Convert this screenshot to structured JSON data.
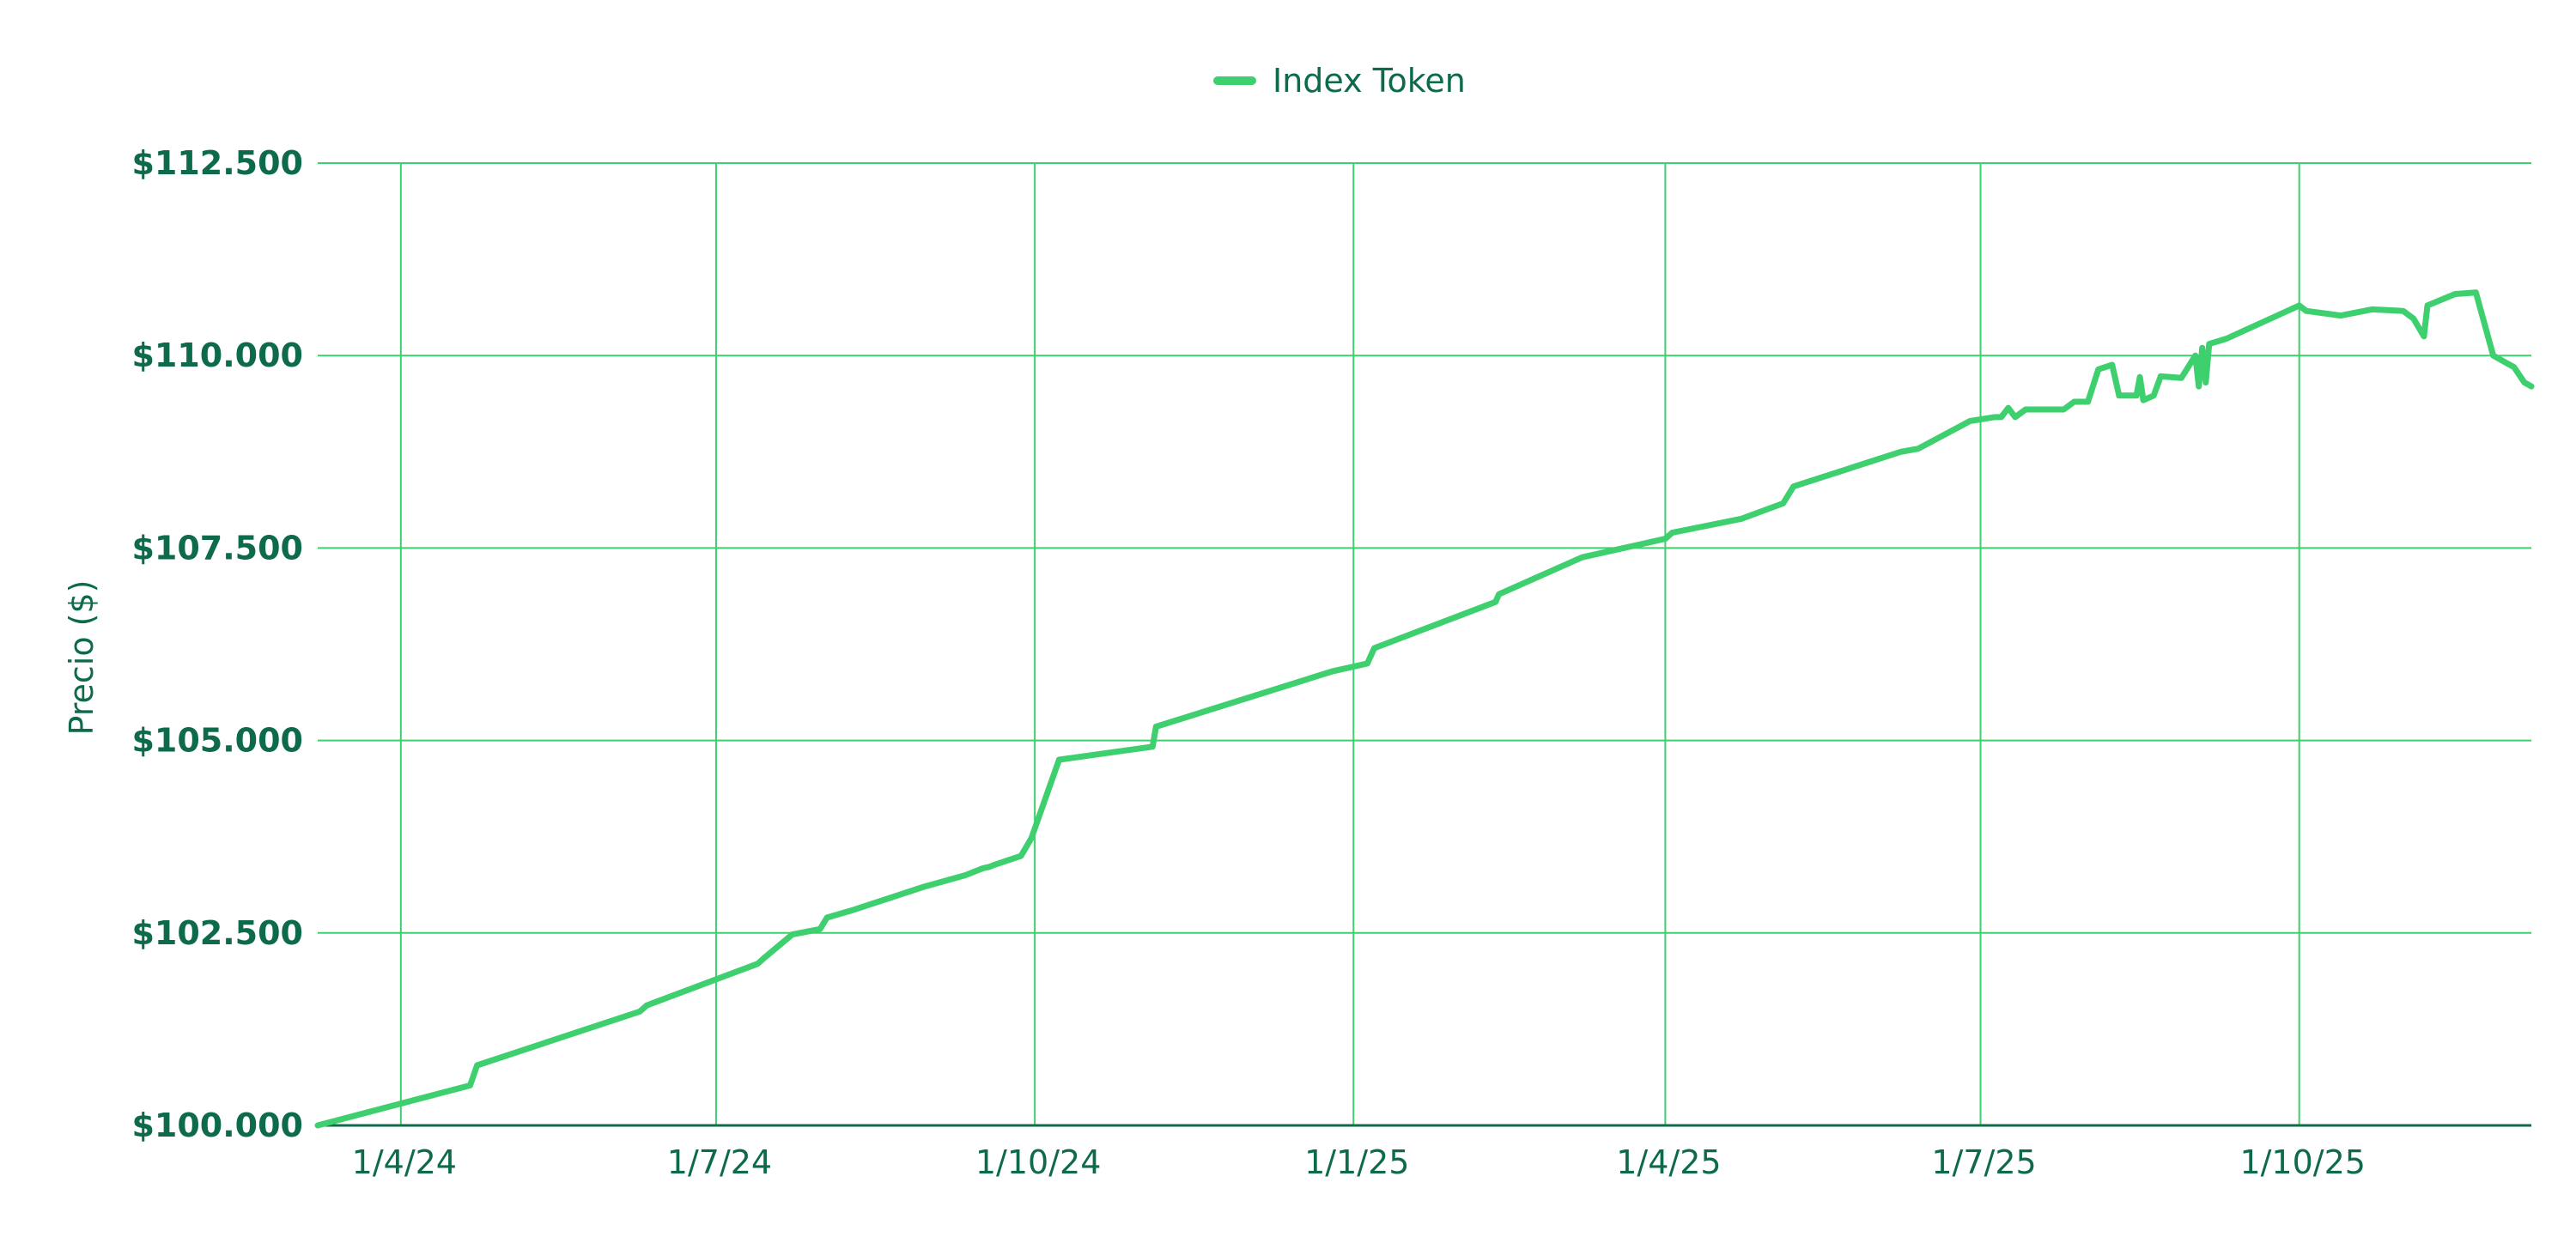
{
  "chart_data": {
    "type": "line",
    "title": "",
    "xlabel": "",
    "ylabel": "Precio ($)",
    "ylim": [
      100000,
      112500
    ],
    "xlim": [
      "2024-03-08",
      "2025-12-07"
    ],
    "grid": true,
    "legend_position": "top-center",
    "accent_color": "#3ecf6e",
    "text_color": "#0d6b4b",
    "y_ticks": [
      {
        "value": 100000,
        "label": "$100.000"
      },
      {
        "value": 102500,
        "label": "$102.500"
      },
      {
        "value": 105000,
        "label": "$105.000"
      },
      {
        "value": 107500,
        "label": "$107.500"
      },
      {
        "value": 110000,
        "label": "$110.000"
      },
      {
        "value": 112500,
        "label": "$112.500"
      }
    ],
    "x_ticks": [
      {
        "value": "2024-04-01",
        "label": "1/4/24"
      },
      {
        "value": "2024-07-01",
        "label": "1/7/24"
      },
      {
        "value": "2024-10-01",
        "label": "1/10/24"
      },
      {
        "value": "2025-01-01",
        "label": "1/1/25"
      },
      {
        "value": "2025-04-01",
        "label": "1/4/25"
      },
      {
        "value": "2025-07-01",
        "label": "1/7/25"
      },
      {
        "value": "2025-10-01",
        "label": "1/10/25"
      }
    ],
    "series": [
      {
        "name": "Index Token",
        "color": "#3ecf6e",
        "points": [
          [
            "2024-03-08",
            100000
          ],
          [
            "2024-04-21",
            100520
          ],
          [
            "2024-04-23",
            100780
          ],
          [
            "2024-06-09",
            101480
          ],
          [
            "2024-06-11",
            101560
          ],
          [
            "2024-07-13",
            102100
          ],
          [
            "2024-07-15",
            102180
          ],
          [
            "2024-07-23",
            102480
          ],
          [
            "2024-07-31",
            102550
          ],
          [
            "2024-08-02",
            102700
          ],
          [
            "2024-08-09",
            102790
          ],
          [
            "2024-09-16",
            103340
          ],
          [
            "2024-08-30",
            103100
          ],
          [
            "2024-09-19",
            103380
          ],
          [
            "2024-09-11",
            103250
          ],
          [
            "2024-09-27",
            103500
          ],
          [
            "2024-09-18",
            103360
          ],
          [
            "2024-09-30",
            103730
          ],
          [
            "2024-10-08",
            104750
          ],
          [
            "2024-11-04",
            104920
          ],
          [
            "2024-11-05",
            105180
          ],
          [
            "2024-12-26",
            105900
          ],
          [
            "2025-01-05",
            106000
          ],
          [
            "2025-01-07",
            106200
          ],
          [
            "2025-02-11",
            106800
          ],
          [
            "2025-02-12",
            106900
          ],
          [
            "2025-03-08",
            107380
          ],
          [
            "2025-04-01",
            107620
          ],
          [
            "2025-04-03",
            107700
          ],
          [
            "2025-04-23",
            107880
          ],
          [
            "2025-05-05",
            108080
          ],
          [
            "2025-05-08",
            108300
          ],
          [
            "2025-06-08",
            108750
          ],
          [
            "2025-06-13",
            108790
          ],
          [
            "2025-06-28",
            109150
          ],
          [
            "2025-07-05",
            109200
          ],
          [
            "2025-07-07",
            109200
          ],
          [
            "2025-07-09",
            109320
          ],
          [
            "2025-07-11",
            109200
          ],
          [
            "2025-07-14",
            109300
          ],
          [
            "2025-07-21",
            109300
          ],
          [
            "2025-07-25",
            109300
          ],
          [
            "2025-07-28",
            109400
          ],
          [
            "2025-08-01",
            109400
          ],
          [
            "2025-08-04",
            109820
          ],
          [
            "2025-08-08",
            109880
          ],
          [
            "2025-08-10",
            109480
          ],
          [
            "2025-08-15",
            109480
          ],
          [
            "2025-08-16",
            109720
          ],
          [
            "2025-08-17",
            109420
          ],
          [
            "2025-08-20",
            109480
          ],
          [
            "2025-08-22",
            109730
          ],
          [
            "2025-08-28",
            109710
          ],
          [
            "2025-09-01",
            110000
          ],
          [
            "2025-09-02",
            109600
          ],
          [
            "2025-09-03",
            110100
          ],
          [
            "2025-09-04",
            109650
          ],
          [
            "2025-09-05",
            110150
          ],
          [
            "2025-09-10",
            110220
          ],
          [
            "2025-10-01",
            110650
          ],
          [
            "2025-10-03",
            110580
          ],
          [
            "2025-10-13",
            110520
          ],
          [
            "2025-10-22",
            110600
          ],
          [
            "2025-10-31",
            110580
          ],
          [
            "2025-11-03",
            110480
          ],
          [
            "2025-11-06",
            110250
          ],
          [
            "2025-11-07",
            110650
          ],
          [
            "2025-11-15",
            110800
          ],
          [
            "2025-11-21",
            110820
          ],
          [
            "2025-11-26",
            110000
          ],
          [
            "2025-12-02",
            109850
          ],
          [
            "2025-12-05",
            109650
          ],
          [
            "2025-12-07",
            109600
          ]
        ]
      }
    ]
  }
}
